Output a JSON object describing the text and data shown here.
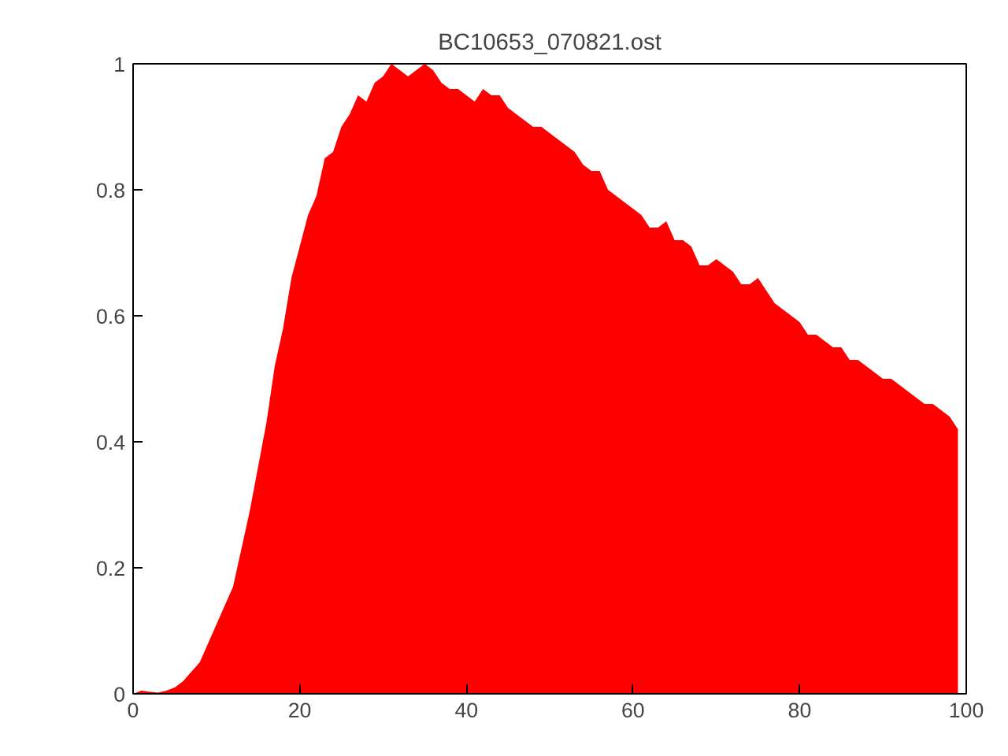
{
  "chart_data": {
    "type": "area",
    "title": "BC10653_070821.ost",
    "xlim": [
      0,
      100
    ],
    "ylim": [
      0,
      1
    ],
    "xticks": [
      0,
      20,
      40,
      60,
      80,
      100
    ],
    "yticks": [
      0,
      0.2,
      0.4,
      0.6,
      0.8,
      1
    ],
    "grid": false,
    "x": [
      0,
      1,
      2,
      3,
      4,
      5,
      6,
      7,
      8,
      9,
      10,
      11,
      12,
      13,
      14,
      15,
      16,
      17,
      18,
      19,
      20,
      21,
      22,
      23,
      24,
      25,
      26,
      27,
      28,
      29,
      30,
      31,
      32,
      33,
      34,
      35,
      36,
      37,
      38,
      39,
      40,
      41,
      42,
      43,
      44,
      45,
      46,
      47,
      48,
      49,
      50,
      51,
      52,
      53,
      54,
      55,
      56,
      57,
      58,
      59,
      60,
      61,
      62,
      63,
      64,
      65,
      66,
      67,
      68,
      69,
      70,
      71,
      72,
      73,
      74,
      75,
      76,
      77,
      78,
      79,
      80,
      81,
      82,
      83,
      84,
      85,
      86,
      87,
      88,
      89,
      90,
      91,
      92,
      93,
      94,
      95,
      96,
      97,
      98,
      99
    ],
    "series": [
      {
        "color": "#ff0000",
        "values": [
          0,
          0.005,
          0.003,
          0.002,
          0.005,
          0.01,
          0.02,
          0.035,
          0.05,
          0.08,
          0.11,
          0.14,
          0.17,
          0.23,
          0.29,
          0.36,
          0.43,
          0.52,
          0.58,
          0.66,
          0.71,
          0.76,
          0.79,
          0.85,
          0.86,
          0.9,
          0.92,
          0.95,
          0.94,
          0.97,
          0.98,
          1,
          0.99,
          0.98,
          0.99,
          1,
          0.99,
          0.97,
          0.96,
          0.96,
          0.95,
          0.94,
          0.96,
          0.95,
          0.95,
          0.93,
          0.92,
          0.91,
          0.9,
          0.9,
          0.89,
          0.88,
          0.87,
          0.86,
          0.84,
          0.83,
          0.83,
          0.8,
          0.79,
          0.78,
          0.77,
          0.76,
          0.74,
          0.74,
          0.75,
          0.72,
          0.72,
          0.71,
          0.68,
          0.68,
          0.69,
          0.68,
          0.67,
          0.65,
          0.65,
          0.66,
          0.64,
          0.62,
          0.61,
          0.6,
          0.59,
          0.57,
          0.57,
          0.56,
          0.55,
          0.55,
          0.53,
          0.53,
          0.52,
          0.51,
          0.5,
          0.5,
          0.49,
          0.48,
          0.47,
          0.46,
          0.46,
          0.45,
          0.44,
          0.42
        ]
      }
    ]
  }
}
